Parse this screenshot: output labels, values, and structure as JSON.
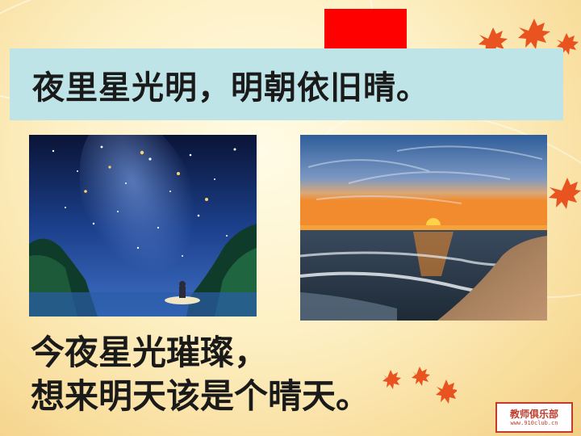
{
  "slide": {
    "title": "夜里星光明，明朝依旧晴。",
    "poem_lines": [
      "今夜星光璀璨，",
      "想来明天该是个晴天。"
    ]
  },
  "images": {
    "left": "starry-night-lake",
    "right": "sunset-beach"
  },
  "logo": {
    "main": "教师俱乐部",
    "sub": "www.910club.cn"
  },
  "colors": {
    "accent_block": "#ff0000",
    "banner": "#bfe4e8",
    "text": "#1a1a1a",
    "leaf": "#e8531f"
  }
}
